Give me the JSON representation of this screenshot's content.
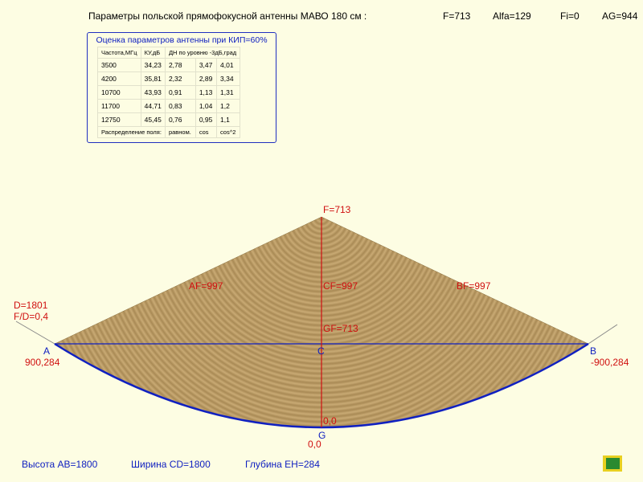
{
  "header": {
    "caption": "Параметры  польской прямофокусной антенны МАВО 180 см :",
    "params": [
      "F=713",
      "Alfa=129",
      "Fi=0",
      "AG=944"
    ]
  },
  "table": {
    "title": "Оценка параметров антенны при КИП=60%",
    "header": [
      "Частота,МГц",
      "КУ,дБ",
      "ДН по уровню -3дБ,град"
    ],
    "rows": [
      [
        "3500",
        "34,23",
        "2,78",
        "3,47",
        "4,01"
      ],
      [
        "4200",
        "35,81",
        "2,32",
        "2,89",
        "3,34"
      ],
      [
        "10700",
        "43,93",
        "0,91",
        "1,13",
        "1,31"
      ],
      [
        "11700",
        "44,71",
        "0,83",
        "1,04",
        "1,2"
      ],
      [
        "12750",
        "45,45",
        "0,76",
        "0,95",
        "1,1"
      ]
    ],
    "footer": [
      "Распределение поля:",
      "равном.",
      "cos",
      "cos^2"
    ]
  },
  "diagram": {
    "focus": "F=713",
    "af": "AF=997",
    "cf": "CF=997",
    "bf": "BF=997",
    "gf": "GF=713",
    "diameter": "D=1801",
    "ratio": "F/D=0,4",
    "a": "A",
    "a_coord": "900,284",
    "b": "B",
    "b_coord": "-900,284",
    "c": "C",
    "g": "G",
    "origin_inner": "0,0",
    "origin_outer": "0,0"
  },
  "footer": [
    "Высота AB=1800",
    "Ширина CD=1800",
    "Глубина EH=284"
  ]
}
